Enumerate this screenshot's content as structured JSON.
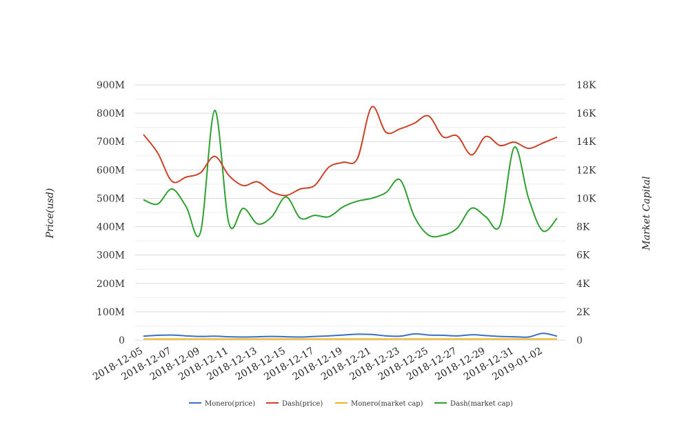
{
  "chart_data": {
    "type": "line",
    "x": [
      "2018-12-05",
      "2018-12-06",
      "2018-12-07",
      "2018-12-08",
      "2018-12-09",
      "2018-12-10",
      "2018-12-11",
      "2018-12-12",
      "2018-12-13",
      "2018-12-14",
      "2018-12-15",
      "2018-12-16",
      "2018-12-17",
      "2018-12-18",
      "2018-12-19",
      "2018-12-20",
      "2018-12-21",
      "2018-12-22",
      "2018-12-23",
      "2018-12-24",
      "2018-12-25",
      "2018-12-26",
      "2018-12-27",
      "2018-12-28",
      "2018-12-29",
      "2018-12-30",
      "2018-12-31",
      "2019-01-01",
      "2019-01-02",
      "2019-01-03"
    ],
    "x_tick_labels": [
      "2018-12-05",
      "2018-12-07",
      "2018-12-09",
      "2018-12-11",
      "2018-12-13",
      "2018-12-15",
      "2018-12-17",
      "2018-12-19",
      "2018-12-21",
      "2018-12-23",
      "2018-12-25",
      "2018-12-27",
      "2018-12-29",
      "2018-12-31",
      "2019-01-02"
    ],
    "ylabel": "Price(usd)",
    "y2label": "Market Capital",
    "ylim": [
      0,
      900000000
    ],
    "y2lim": [
      0,
      18000
    ],
    "yticks": [
      "0",
      "100M",
      "200M",
      "300M",
      "400M",
      "500M",
      "600M",
      "700M",
      "800M",
      "900M"
    ],
    "y2ticks": [
      "0",
      "2K",
      "4K",
      "6K",
      "8K",
      "10K",
      "12K",
      "14K",
      "16K",
      "18K"
    ],
    "grid": true,
    "legend_position": "bottom",
    "series": [
      {
        "name": "Monero(price)",
        "axis": "left",
        "color": "#3a6fc4",
        "values": [
          14000000,
          17000000,
          18000000,
          15000000,
          13000000,
          14000000,
          12000000,
          11000000,
          12000000,
          13000000,
          12000000,
          11000000,
          13000000,
          15000000,
          18000000,
          21000000,
          20000000,
          15000000,
          14000000,
          22000000,
          18000000,
          17000000,
          15000000,
          19000000,
          16000000,
          13000000,
          12000000,
          11000000,
          24000000,
          14000000
        ]
      },
      {
        "name": "Dash(price)",
        "axis": "left",
        "color": "#cc4125",
        "values": [
          725000000,
          660000000,
          560000000,
          575000000,
          590000000,
          648000000,
          580000000,
          545000000,
          558000000,
          523000000,
          510000000,
          533000000,
          545000000,
          610000000,
          627000000,
          640000000,
          822000000,
          733000000,
          745000000,
          765000000,
          790000000,
          717000000,
          720000000,
          653000000,
          718000000,
          686000000,
          698000000,
          676000000,
          695000000,
          716000000
        ]
      },
      {
        "name": "Monero(market cap)",
        "axis": "right",
        "color": "#f1b51c",
        "values": [
          80,
          80,
          80,
          80,
          80,
          80,
          80,
          80,
          80,
          80,
          80,
          80,
          80,
          80,
          80,
          80,
          80,
          80,
          80,
          80,
          80,
          80,
          80,
          80,
          80,
          80,
          80,
          80,
          80,
          80
        ]
      },
      {
        "name": "Dash(market cap)",
        "axis": "right",
        "color": "#2ca02c",
        "values": [
          9900,
          9600,
          10660,
          9400,
          7600,
          16200,
          8200,
          9300,
          8200,
          8700,
          10100,
          8600,
          8800,
          8700,
          9400,
          9800,
          10000,
          10400,
          11300,
          8700,
          7400,
          7400,
          7900,
          9300,
          8700,
          8100,
          13600,
          10000,
          7700,
          8600
        ]
      }
    ]
  }
}
